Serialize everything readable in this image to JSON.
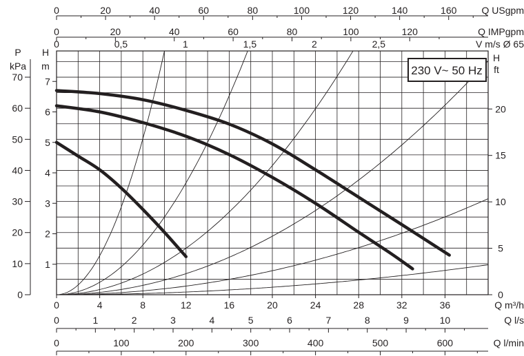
{
  "chart_data": {
    "type": "line",
    "title": "",
    "annotation": "230 V~ 50 Hz",
    "flow_axes": [
      {
        "label": "Q USgpm",
        "ticks": [
          0,
          20,
          40,
          60,
          80,
          100,
          120,
          140,
          160
        ],
        "factor_to_m3h": 0.227125
      },
      {
        "label": "Q IMPgpm",
        "ticks": [
          0,
          20,
          40,
          60,
          80,
          100,
          120
        ],
        "factor_to_m3h": 0.272765
      },
      {
        "label": "V m/s Ø 65",
        "ticks": [
          "0",
          "0,5",
          "1",
          "1,5",
          "2",
          "2,5"
        ],
        "factor_to_m3h": 11.945
      },
      {
        "label": "Q m³/h",
        "ticks": [
          0,
          4,
          8,
          12,
          16,
          20,
          24,
          28,
          32,
          36
        ],
        "factor_to_m3h": 1
      },
      {
        "label": "Q l/s",
        "ticks": [
          0,
          1,
          2,
          3,
          4,
          5,
          6,
          7,
          8,
          9,
          10
        ],
        "factor_to_m3h": 3.6
      },
      {
        "label": "Q l/min",
        "ticks": [
          0,
          100,
          200,
          300,
          400,
          500,
          600
        ],
        "factor_to_m3h": 0.06
      }
    ],
    "head_axes": [
      {
        "label_top": "P",
        "label_bottom": "kPa",
        "ticks": [
          0,
          10,
          20,
          30,
          40,
          50,
          60,
          70
        ],
        "factor_to_m": 0.102
      },
      {
        "label_top": "H",
        "label_bottom": "m",
        "ticks": [
          1,
          2,
          3,
          4,
          5,
          6,
          7
        ],
        "factor_to_m": 1
      },
      {
        "label_top": "H",
        "label_bottom": "ft",
        "ticks": [
          0,
          5,
          10,
          15,
          20
        ],
        "factor_to_m": 0.3048
      }
    ],
    "xlim_m3h": [
      0,
      40
    ],
    "ylim_m": [
      0,
      8
    ],
    "grid": true,
    "pump_curves": [
      {
        "x": [
          0,
          2,
          4,
          6,
          8,
          10,
          12
        ],
        "y": [
          5.0,
          4.55,
          4.1,
          3.5,
          2.8,
          2.05,
          1.25
        ]
      },
      {
        "x": [
          0,
          4,
          8,
          12,
          16,
          20,
          24,
          28,
          31,
          33
        ],
        "y": [
          6.2,
          6.0,
          5.65,
          5.2,
          4.6,
          3.85,
          3.0,
          2.05,
          1.35,
          0.85
        ]
      },
      {
        "x": [
          0,
          4,
          8,
          12,
          16,
          20,
          24,
          28,
          32,
          36.4
        ],
        "y": [
          6.7,
          6.6,
          6.4,
          6.05,
          5.6,
          4.95,
          4.1,
          3.2,
          2.3,
          1.3
        ]
      }
    ],
    "system_curve_coefficients": [
      0.08,
      0.0255,
      0.0106,
      0.0048,
      0.00197,
      0.000615
    ]
  }
}
